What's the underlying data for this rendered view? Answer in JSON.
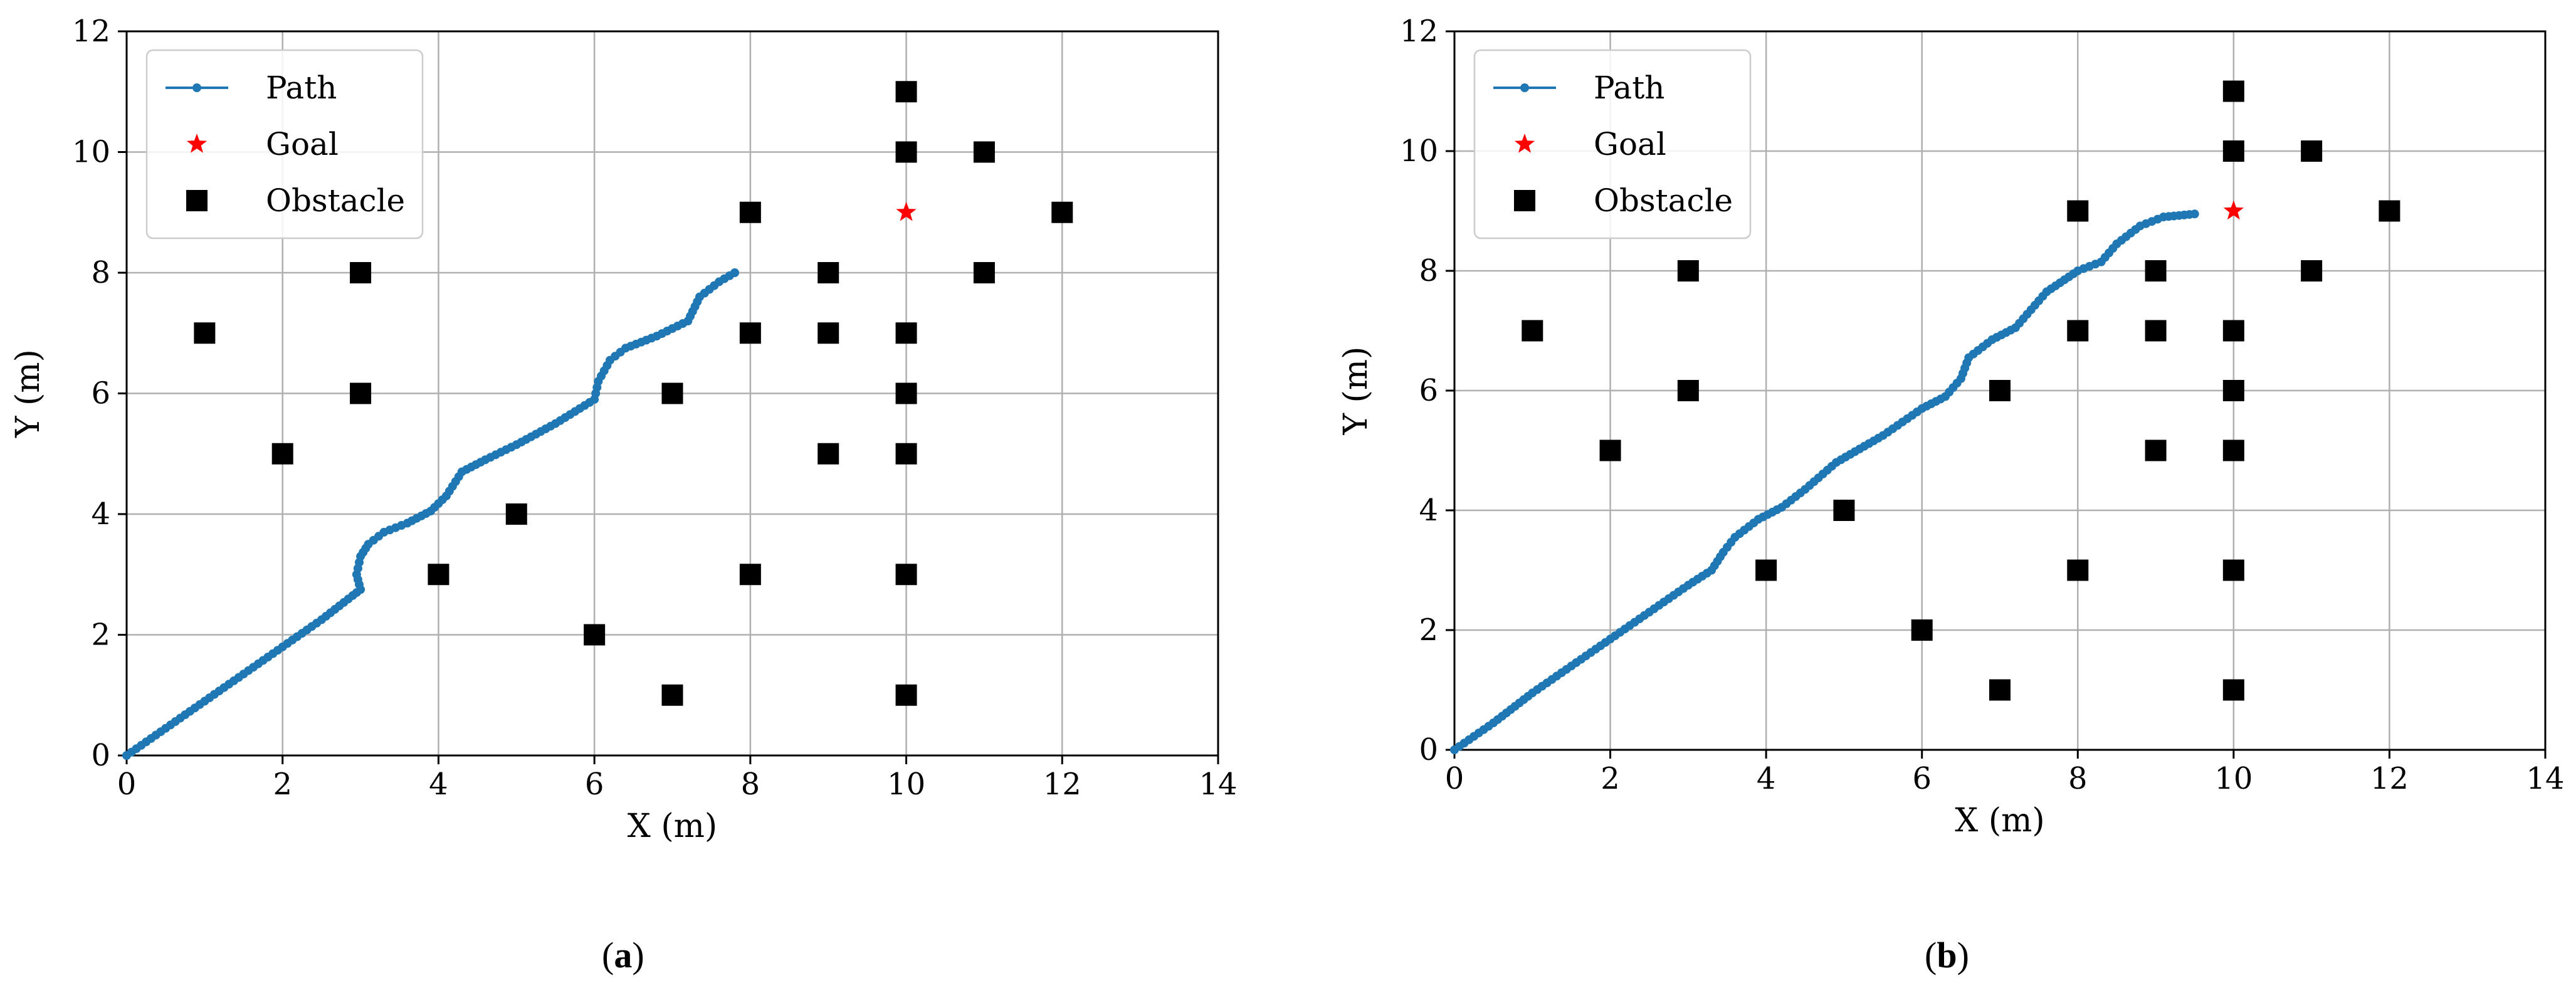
{
  "chart_data": [
    {
      "type": "line",
      "panel": "(a)",
      "caption_letter": "a",
      "xlabel": "X (m)",
      "ylabel": "Y (m)",
      "xlim": [
        0,
        14
      ],
      "ylim": [
        0,
        12
      ],
      "xticks": [
        0,
        2,
        4,
        6,
        8,
        10,
        12,
        14
      ],
      "yticks": [
        0,
        2,
        4,
        6,
        8,
        10,
        12
      ],
      "grid": true,
      "legend_position": "top-left",
      "legend": [
        "Path",
        "Goal",
        "Obstacle"
      ],
      "series": [
        {
          "name": "Path",
          "color": "#1f77b4",
          "points": [
            [
              0,
              0
            ],
            [
              0.5,
              0.45
            ],
            [
              1,
              0.9
            ],
            [
              1.5,
              1.35
            ],
            [
              2,
              1.8
            ],
            [
              2.5,
              2.25
            ],
            [
              2.9,
              2.65
            ],
            [
              3,
              2.75
            ],
            [
              2.95,
              3.0
            ],
            [
              3.0,
              3.3
            ],
            [
              3.1,
              3.5
            ],
            [
              3.3,
              3.7
            ],
            [
              3.6,
              3.85
            ],
            [
              3.9,
              4.05
            ],
            [
              4.1,
              4.3
            ],
            [
              4.3,
              4.7
            ],
            [
              4.6,
              4.9
            ],
            [
              5,
              5.15
            ],
            [
              5.5,
              5.5
            ],
            [
              6,
              5.9
            ],
            [
              6.05,
              6.2
            ],
            [
              6.2,
              6.55
            ],
            [
              6.4,
              6.75
            ],
            [
              6.8,
              6.95
            ],
            [
              7.2,
              7.2
            ],
            [
              7.35,
              7.6
            ],
            [
              7.6,
              7.85
            ],
            [
              7.8,
              8.0
            ]
          ]
        },
        {
          "name": "Goal",
          "color": "#ff0000",
          "points": [
            [
              10,
              9
            ]
          ]
        },
        {
          "name": "Obstacle",
          "color": "#000000",
          "points": [
            [
              1,
              7
            ],
            [
              2,
              5
            ],
            [
              3,
              8
            ],
            [
              3,
              6
            ],
            [
              4,
              3
            ],
            [
              5,
              4
            ],
            [
              6,
              2
            ],
            [
              7,
              6
            ],
            [
              7,
              1
            ],
            [
              8,
              9
            ],
            [
              8,
              7
            ],
            [
              8,
              3
            ],
            [
              9,
              8
            ],
            [
              9,
              7
            ],
            [
              9,
              5
            ],
            [
              10,
              11
            ],
            [
              10,
              10
            ],
            [
              10,
              7
            ],
            [
              10,
              6
            ],
            [
              10,
              5
            ],
            [
              10,
              3
            ],
            [
              10,
              1
            ],
            [
              11,
              10
            ],
            [
              11,
              8
            ],
            [
              12,
              9
            ]
          ]
        }
      ]
    },
    {
      "type": "line",
      "panel": "(b)",
      "caption_letter": "b",
      "xlabel": "X (m)",
      "ylabel": "Y (m)",
      "xlim": [
        0,
        14
      ],
      "ylim": [
        0,
        12
      ],
      "xticks": [
        0,
        2,
        4,
        6,
        8,
        10,
        12,
        14
      ],
      "yticks": [
        0,
        2,
        4,
        6,
        8,
        10,
        12
      ],
      "grid": true,
      "legend_position": "top-left",
      "legend": [
        "Path",
        "Goal",
        "Obstacle"
      ],
      "series": [
        {
          "name": "Path",
          "color": "#1f77b4",
          "points": [
            [
              0,
              0
            ],
            [
              0.5,
              0.45
            ],
            [
              1,
              0.95
            ],
            [
              1.5,
              1.4
            ],
            [
              2,
              1.85
            ],
            [
              2.5,
              2.3
            ],
            [
              3,
              2.75
            ],
            [
              3.3,
              3.0
            ],
            [
              3.45,
              3.3
            ],
            [
              3.6,
              3.55
            ],
            [
              3.9,
              3.85
            ],
            [
              4.2,
              4.05
            ],
            [
              4.5,
              4.35
            ],
            [
              4.9,
              4.8
            ],
            [
              5.5,
              5.25
            ],
            [
              6,
              5.7
            ],
            [
              6.3,
              5.9
            ],
            [
              6.5,
              6.2
            ],
            [
              6.6,
              6.55
            ],
            [
              6.9,
              6.85
            ],
            [
              7.2,
              7.05
            ],
            [
              7.4,
              7.35
            ],
            [
              7.6,
              7.65
            ],
            [
              8,
              8.0
            ],
            [
              8.3,
              8.15
            ],
            [
              8.5,
              8.45
            ],
            [
              8.8,
              8.75
            ],
            [
              9.1,
              8.9
            ],
            [
              9.5,
              8.95
            ]
          ]
        },
        {
          "name": "Goal",
          "color": "#ff0000",
          "points": [
            [
              10,
              9
            ]
          ]
        },
        {
          "name": "Obstacle",
          "color": "#000000",
          "points": [
            [
              1,
              7
            ],
            [
              2,
              5
            ],
            [
              3,
              8
            ],
            [
              3,
              6
            ],
            [
              4,
              3
            ],
            [
              5,
              4
            ],
            [
              6,
              2
            ],
            [
              7,
              6
            ],
            [
              7,
              1
            ],
            [
              8,
              9
            ],
            [
              8,
              7
            ],
            [
              8,
              3
            ],
            [
              9,
              8
            ],
            [
              9,
              7
            ],
            [
              9,
              5
            ],
            [
              10,
              11
            ],
            [
              10,
              10
            ],
            [
              10,
              7
            ],
            [
              10,
              6
            ],
            [
              10,
              5
            ],
            [
              10,
              3
            ],
            [
              10,
              1
            ],
            [
              11,
              10
            ],
            [
              11,
              8
            ],
            [
              12,
              9
            ]
          ]
        }
      ]
    }
  ]
}
